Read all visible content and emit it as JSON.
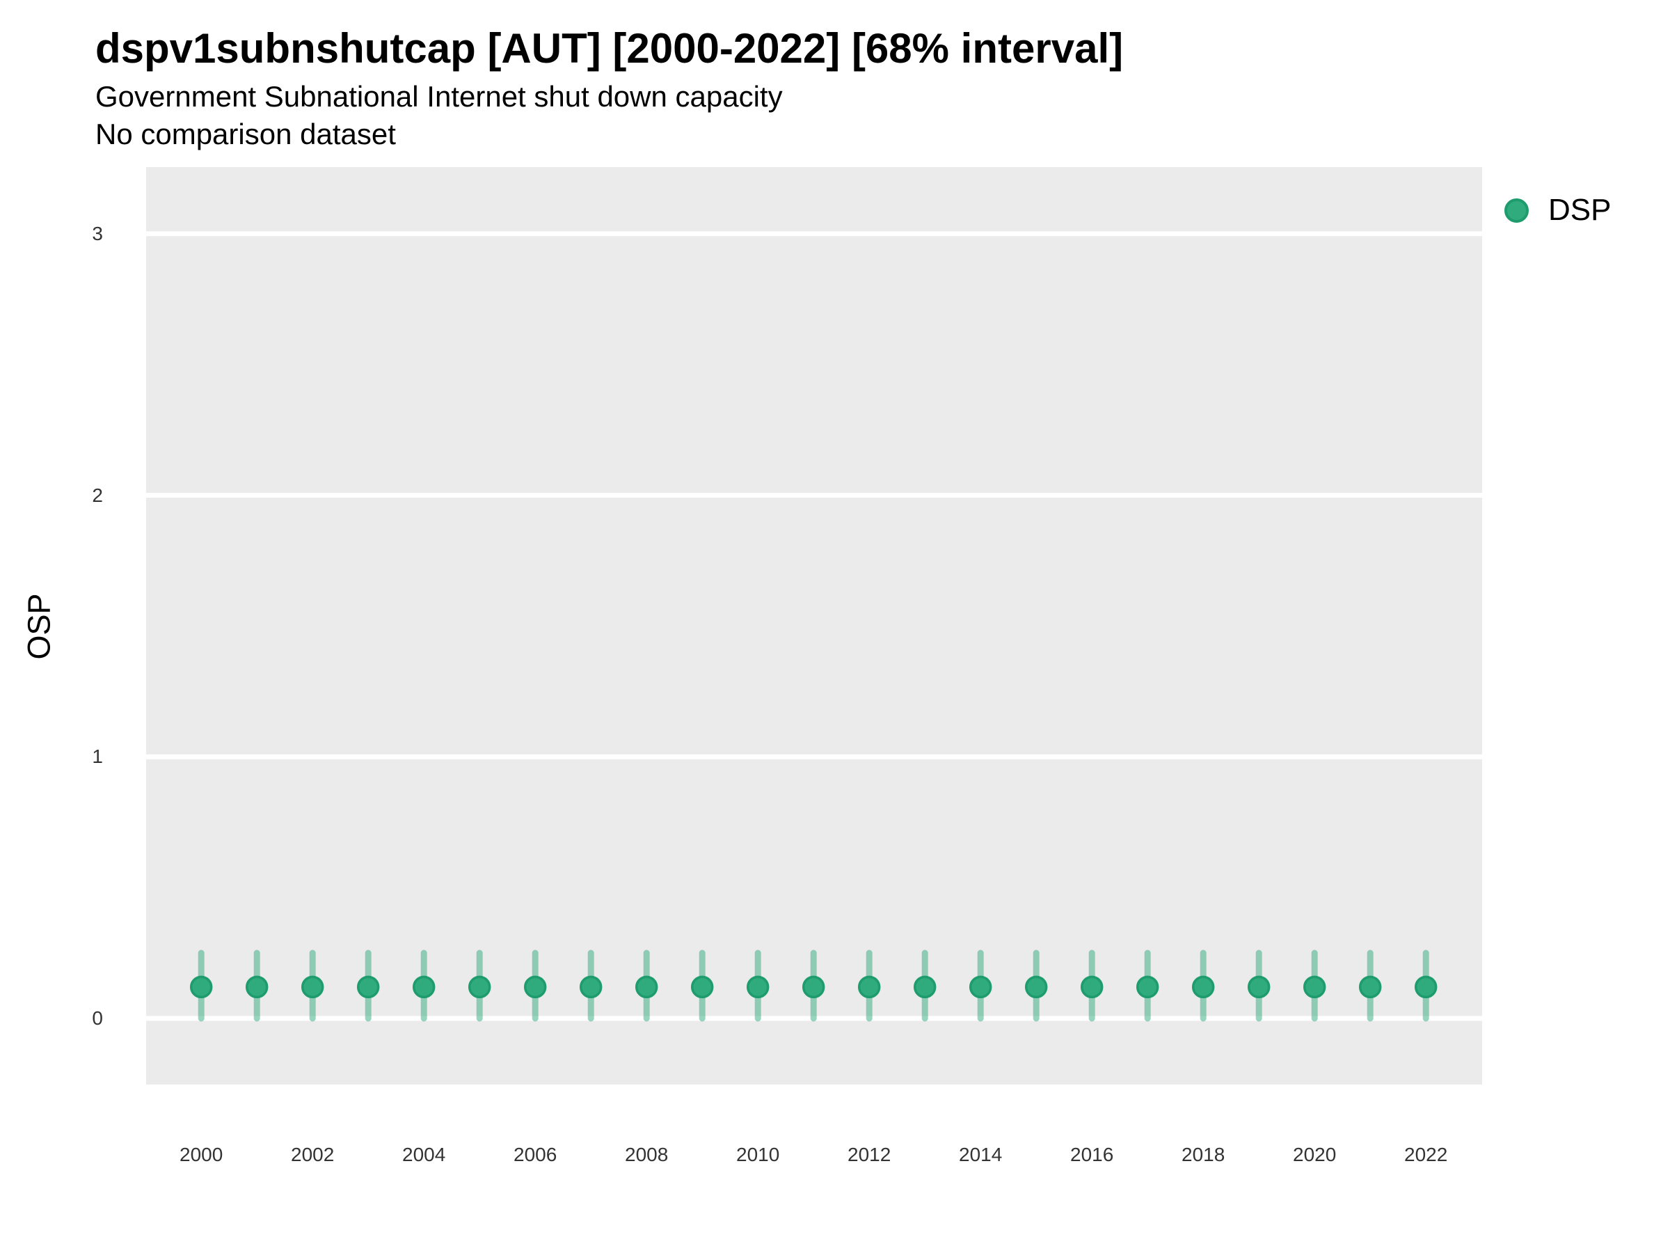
{
  "header": {
    "title": "dspv1subnshutcap [AUT] [2000-2022] [68% interval]",
    "subtitle": "Government Subnational Internet shut down capacity",
    "subtitle2": "No comparison dataset"
  },
  "legend": {
    "position": "right-top",
    "items": [
      {
        "label": "DSP",
        "marker": "circle",
        "color": "#2FAB7E"
      }
    ]
  },
  "colors": {
    "point_fill": "#2FAB7E",
    "point_stroke": "#1F9C6D",
    "interval": "rgba(47, 171, 126, 0.5)",
    "panel_bg": "#EBEBEB",
    "gridline": "#FFFFFF",
    "axis_text": "#333333",
    "title_text": "#000000"
  },
  "chart_data": {
    "type": "scatter",
    "title": "dspv1subnshutcap [AUT] [2000-2022] [68% interval]",
    "subtitle": "Government Subnational Internet shut down capacity",
    "caption": "No comparison dataset",
    "xlabel": "",
    "ylabel": "OSP",
    "interval_level": "68%",
    "grid": "major horizontal white gridlines on gray panel, no minor gridlines",
    "legend_position": "right",
    "xlim": [
      1999.01,
      2023.01
    ],
    "ylim": [
      -0.253,
      3.255
    ],
    "xticks": [
      2000,
      2002,
      2004,
      2006,
      2008,
      2010,
      2012,
      2014,
      2016,
      2018,
      2020,
      2022
    ],
    "yticks": [
      0,
      1,
      2,
      3
    ],
    "x": [
      2000,
      2001,
      2002,
      2003,
      2004,
      2005,
      2006,
      2007,
      2008,
      2009,
      2010,
      2011,
      2012,
      2013,
      2014,
      2015,
      2016,
      2017,
      2018,
      2019,
      2020,
      2021,
      2022
    ],
    "series": [
      {
        "name": "DSP",
        "values": [
          0.12,
          0.12,
          0.12,
          0.12,
          0.12,
          0.12,
          0.12,
          0.12,
          0.12,
          0.12,
          0.12,
          0.12,
          0.12,
          0.12,
          0.12,
          0.12,
          0.12,
          0.12,
          0.12,
          0.12,
          0.12,
          0.12,
          0.12
        ],
        "interval_low": [
          0.0,
          0.0,
          0.0,
          0.0,
          0.0,
          0.0,
          0.0,
          0.0,
          0.0,
          0.0,
          0.0,
          0.0,
          0.0,
          0.0,
          0.0,
          0.0,
          0.0,
          0.0,
          0.0,
          0.0,
          0.0,
          0.0,
          0.0
        ],
        "interval_high": [
          0.25,
          0.25,
          0.25,
          0.25,
          0.25,
          0.25,
          0.25,
          0.25,
          0.25,
          0.25,
          0.25,
          0.25,
          0.25,
          0.25,
          0.25,
          0.25,
          0.25,
          0.25,
          0.25,
          0.25,
          0.25,
          0.25,
          0.25
        ]
      }
    ]
  }
}
